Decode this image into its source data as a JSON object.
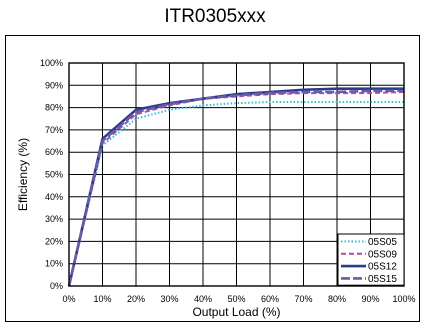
{
  "chart_data": {
    "type": "line",
    "title": "ITR0305xxx",
    "xlabel": "Output Load (%)",
    "ylabel": "Efficiency (%)",
    "x": [
      0,
      10,
      20,
      30,
      40,
      50,
      60,
      70,
      80,
      90,
      100
    ],
    "xlim": [
      0,
      100
    ],
    "ylim": [
      0,
      100
    ],
    "x_ticks": [
      "0%",
      "10%",
      "20%",
      "30%",
      "40%",
      "50%",
      "60%",
      "70%",
      "80%",
      "90%",
      "100%"
    ],
    "y_ticks": [
      "0%",
      "10%",
      "20%",
      "30%",
      "40%",
      "50%",
      "60%",
      "70%",
      "80%",
      "90%",
      "100%"
    ],
    "grid": true,
    "legend_position": "bottom-right",
    "series": [
      {
        "name": "05S05",
        "color": "#33bbe6",
        "dash": "dotted",
        "values": [
          0,
          63,
          75,
          79,
          81,
          82,
          82.5,
          82.5,
          82.5,
          82.5,
          82.5
        ]
      },
      {
        "name": "05S09",
        "color": "#b04aa6",
        "dash": "dashed",
        "values": [
          0,
          64,
          77,
          81,
          84,
          85,
          86,
          86.5,
          86.5,
          86.5,
          87
        ]
      },
      {
        "name": "05S12",
        "color": "#283c8c",
        "dash": "solid",
        "values": [
          0,
          66,
          79,
          82,
          84,
          86,
          87,
          88,
          88.5,
          88.5,
          88.5
        ]
      },
      {
        "name": "05S15",
        "color": "#6b5ba8",
        "dash": "longdash",
        "values": [
          0,
          65,
          78,
          81.5,
          84,
          85.5,
          86.5,
          87,
          87,
          87.5,
          87.5
        ]
      }
    ]
  }
}
